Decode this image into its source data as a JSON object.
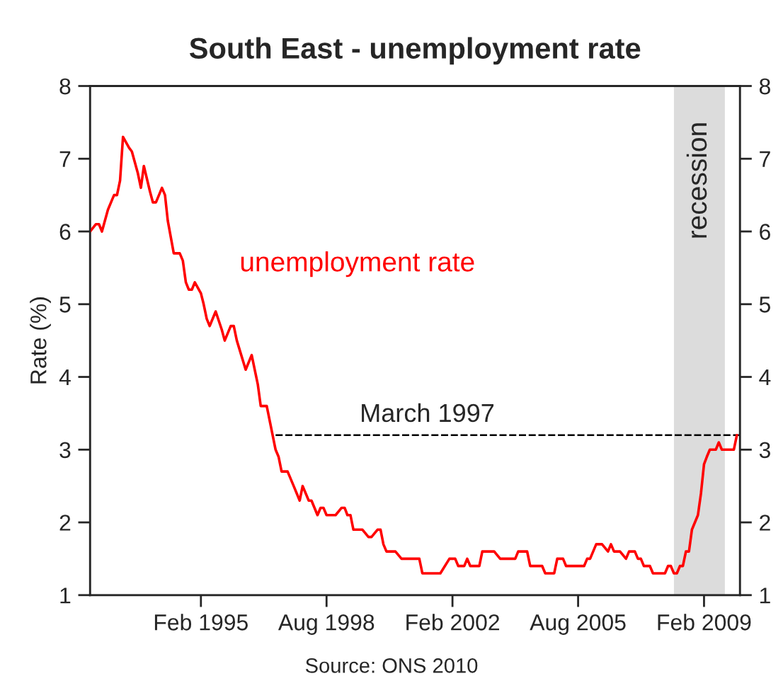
{
  "chart_data": {
    "type": "line",
    "title": "South East - unemployment rate",
    "ylabel": "Rate (%)",
    "xlim": [
      "1992-01",
      "2010-02"
    ],
    "ylim": [
      1,
      8
    ],
    "yticks": [
      1,
      2,
      3,
      4,
      5,
      6,
      7,
      8
    ],
    "y2lim": [
      1,
      8
    ],
    "y2ticks": [
      1,
      2,
      3,
      4,
      5,
      6,
      7,
      8
    ],
    "xticks": [
      {
        "value": "1995-02",
        "label": "Feb 1995"
      },
      {
        "value": "1998-08",
        "label": "Aug 1998"
      },
      {
        "value": "2002-02",
        "label": "Feb 2002"
      },
      {
        "value": "2005-08",
        "label": "Aug 2005"
      },
      {
        "value": "2009-02",
        "label": "Feb 2009"
      }
    ],
    "grid": false,
    "legend": false,
    "bands": [
      {
        "axis": "x",
        "from": "2008-04",
        "to": "2009-09",
        "label": "recession",
        "color": "#dcdcdc"
      }
    ],
    "series": [
      {
        "name": "unemployment rate",
        "color": "#ff0000",
        "line_style": "solid",
        "x": [
          "1992-01",
          "1992-03",
          "1992-04",
          "1992-05",
          "1992-07",
          "1992-08",
          "1992-09",
          "1992-10",
          "1992-11",
          "1992-12",
          "1993-02",
          "1993-03",
          "1993-05",
          "1993-06",
          "1993-07",
          "1993-09",
          "1993-10",
          "1993-11",
          "1994-01",
          "1994-02",
          "1994-03",
          "1994-05",
          "1994-07",
          "1994-08",
          "1994-09",
          "1994-10",
          "1994-11",
          "1994-12",
          "1995-02",
          "1995-03",
          "1995-04",
          "1995-05",
          "1995-07",
          "1995-09",
          "1995-10",
          "1995-12",
          "1996-01",
          "1996-02",
          "1996-05",
          "1996-07",
          "1996-09",
          "1996-10",
          "1996-12",
          "1997-03",
          "1997-04",
          "1997-05",
          "1997-07",
          "1997-09",
          "1997-11",
          "1997-12",
          "1998-02",
          "1998-03",
          "1998-05",
          "1998-06",
          "1998-07",
          "1998-08",
          "1998-11",
          "1999-01",
          "1999-02",
          "1999-03",
          "1999-04",
          "1999-05",
          "1999-08",
          "1999-10",
          "1999-11",
          "2000-01",
          "2000-02",
          "2000-03",
          "2000-04",
          "2000-07",
          "2000-09",
          "2001-03",
          "2001-04",
          "2001-10",
          "2002-01",
          "2002-03",
          "2002-04",
          "2002-06",
          "2002-07",
          "2002-08",
          "2002-11",
          "2002-12",
          "2003-04",
          "2003-06",
          "2003-11",
          "2003-12",
          "2004-03",
          "2004-04",
          "2004-08",
          "2004-09",
          "2004-12",
          "2005-01",
          "2005-03",
          "2005-04",
          "2005-10",
          "2005-11",
          "2005-12",
          "2006-02",
          "2006-04",
          "2006-06",
          "2006-07",
          "2006-08",
          "2006-10",
          "2006-12",
          "2007-01",
          "2007-03",
          "2007-04",
          "2007-05",
          "2007-06",
          "2007-08",
          "2007-09",
          "2008-01",
          "2008-02",
          "2008-03",
          "2008-04",
          "2008-05",
          "2008-06",
          "2008-07",
          "2008-08",
          "2008-09",
          "2008-10",
          "2008-12",
          "2009-01",
          "2009-02",
          "2009-03",
          "2009-04",
          "2009-06",
          "2009-07",
          "2009-08",
          "2009-12",
          "2010-01"
        ],
        "values": [
          6.0,
          6.1,
          6.1,
          6.0,
          6.3,
          6.4,
          6.5,
          6.5,
          6.7,
          7.3,
          7.15,
          7.1,
          6.8,
          6.6,
          6.9,
          6.55,
          6.4,
          6.4,
          6.6,
          6.5,
          6.15,
          5.7,
          5.7,
          5.6,
          5.3,
          5.2,
          5.2,
          5.3,
          5.15,
          5.0,
          4.8,
          4.7,
          4.9,
          4.65,
          4.5,
          4.7,
          4.7,
          4.5,
          4.1,
          4.3,
          3.9,
          3.6,
          3.6,
          3.0,
          2.9,
          2.7,
          2.7,
          2.5,
          2.3,
          2.5,
          2.3,
          2.3,
          2.1,
          2.2,
          2.2,
          2.1,
          2.1,
          2.2,
          2.2,
          2.1,
          2.1,
          1.9,
          1.9,
          1.8,
          1.8,
          1.9,
          1.9,
          1.7,
          1.6,
          1.6,
          1.5,
          1.5,
          1.3,
          1.3,
          1.5,
          1.5,
          1.4,
          1.4,
          1.5,
          1.4,
          1.4,
          1.6,
          1.6,
          1.5,
          1.5,
          1.6,
          1.6,
          1.4,
          1.4,
          1.3,
          1.3,
          1.5,
          1.5,
          1.4,
          1.4,
          1.5,
          1.5,
          1.7,
          1.7,
          1.6,
          1.7,
          1.6,
          1.6,
          1.5,
          1.6,
          1.6,
          1.5,
          1.5,
          1.4,
          1.4,
          1.3,
          1.3,
          1.4,
          1.4,
          1.3,
          1.3,
          1.4,
          1.4,
          1.6,
          1.6,
          1.9,
          2.1,
          2.4,
          2.8,
          2.9,
          3.0,
          3.0,
          3.1,
          3.0,
          3.0,
          3.2
        ]
      },
      {
        "color": "#000000",
        "line_style": "dashed",
        "x": [
          "1997-03",
          "2010-02"
        ],
        "values": [
          3.2,
          3.2
        ]
      }
    ],
    "annotations": [
      "March 1997",
      "Source: ONS 2010"
    ]
  }
}
